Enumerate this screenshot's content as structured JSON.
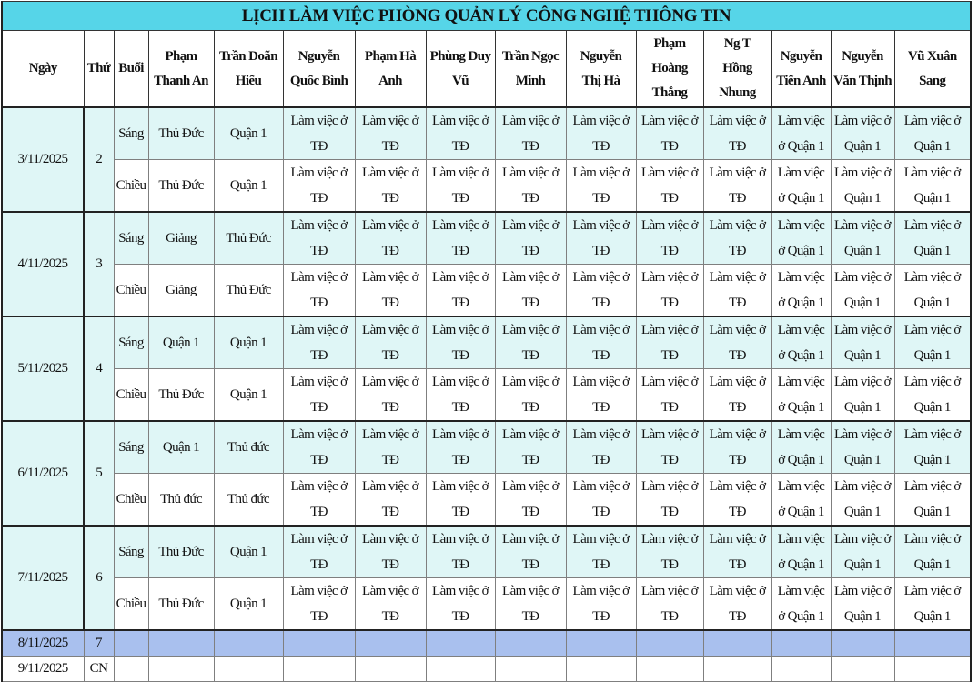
{
  "title": "LỊCH LÀM VIỆC PHÒNG QUẢN LÝ CÔNG NGHỆ THÔNG TIN",
  "headers": [
    "Ngày",
    "Thứ",
    "Buổi",
    "Phạm\nThanh An",
    "Trần Doãn\nHiếu",
    "Nguyễn\nQuốc Bình",
    "Phạm Hà\nAnh",
    "Phùng Duy\nVũ",
    "Trần Ngọc\nMinh",
    "Nguyễn\nThị Hà",
    "Phạm\nHoàng\nThắng",
    "Ng T\nHồng\nNhung",
    "Nguyễn\nTiến Anh",
    "Nguyễn\nVăn Thịnh",
    "Vũ Xuân\nSang"
  ],
  "days": [
    {
      "date": "3/11/2025",
      "dow": "2",
      "sessions": [
        {
          "session": "Sáng",
          "cells": [
            "Thủ Đức",
            "Quận 1",
            "Làm việc ở\nTĐ",
            "Làm việc ở\nTĐ",
            "Làm việc ở\nTĐ",
            "Làm việc ở\nTĐ",
            "Làm việc ở\nTĐ",
            "Làm việc ở\nTĐ",
            "Làm việc ở\nTĐ",
            "Làm việc\nở Quận 1",
            "Làm việc ở\nQuận 1",
            "Làm việc ở\nQuận 1"
          ]
        },
        {
          "session": "Chiều",
          "cells": [
            "Thủ Đức",
            "Quận 1",
            "Làm việc ở\nTĐ",
            "Làm việc ở\nTĐ",
            "Làm việc ở\nTĐ",
            "Làm việc ở\nTĐ",
            "Làm việc ở\nTĐ",
            "Làm việc ở\nTĐ",
            "Làm việc ở\nTĐ",
            "Làm việc\nở Quận 1",
            "Làm việc ở\nQuận 1",
            "Làm việc ở\nQuận 1"
          ]
        }
      ]
    },
    {
      "date": "4/11/2025",
      "dow": "3",
      "sessions": [
        {
          "session": "Sáng",
          "cells": [
            "Giảng",
            "Thủ Đức",
            "Làm việc ở\nTĐ",
            "Làm việc ở\nTĐ",
            "Làm việc ở\nTĐ",
            "Làm việc ở\nTĐ",
            "Làm việc ở\nTĐ",
            "Làm việc ở\nTĐ",
            "Làm việc ở\nTĐ",
            "Làm việc\nở Quận 1",
            "Làm việc ở\nQuận 1",
            "Làm việc ở\nQuận 1"
          ]
        },
        {
          "session": "Chiều",
          "cells": [
            "Giảng",
            "Thủ Đức",
            "Làm việc ở\nTĐ",
            "Làm việc ở\nTĐ",
            "Làm việc ở\nTĐ",
            "Làm việc ở\nTĐ",
            "Làm việc ở\nTĐ",
            "Làm việc ở\nTĐ",
            "Làm việc ở\nTĐ",
            "Làm việc\nở Quận 1",
            "Làm việc ở\nQuận 1",
            "Làm việc ở\nQuận 1"
          ]
        }
      ]
    },
    {
      "date": "5/11/2025",
      "dow": "4",
      "sessions": [
        {
          "session": "Sáng",
          "cells": [
            "Quận 1",
            "Quận 1",
            "Làm việc ở\nTĐ",
            "Làm việc ở\nTĐ",
            "Làm việc ở\nTĐ",
            "Làm việc ở\nTĐ",
            "Làm việc ở\nTĐ",
            "Làm việc ở\nTĐ",
            "Làm việc ở\nTĐ",
            "Làm việc\nở Quận 1",
            "Làm việc ở\nQuận 1",
            "Làm việc ở\nQuận 1"
          ]
        },
        {
          "session": "Chiều",
          "cells": [
            "Thủ Đức",
            "Quận 1",
            "Làm việc ở\nTĐ",
            "Làm việc ở\nTĐ",
            "Làm việc ở\nTĐ",
            "Làm việc ở\nTĐ",
            "Làm việc ở\nTĐ",
            "Làm việc ở\nTĐ",
            "Làm việc ở\nTĐ",
            "Làm việc\nở Quận 1",
            "Làm việc ở\nQuận 1",
            "Làm việc ở\nQuận 1"
          ]
        }
      ]
    },
    {
      "date": "6/11/2025",
      "dow": "5",
      "sessions": [
        {
          "session": "Sáng",
          "cells": [
            "Quận 1",
            "Thủ đức",
            "Làm việc ở\nTĐ",
            "Làm việc ở\nTĐ",
            "Làm việc ở\nTĐ",
            "Làm việc ở\nTĐ",
            "Làm việc ở\nTĐ",
            "Làm việc ở\nTĐ",
            "Làm việc ở\nTĐ",
            "Làm việc\nở Quận 1",
            "Làm việc ở\nQuận 1",
            "Làm việc ở\nQuận 1"
          ]
        },
        {
          "session": "Chiều",
          "cells": [
            "Thủ đức",
            "Thủ đức",
            "Làm việc ở\nTĐ",
            "Làm việc ở\nTĐ",
            "Làm việc ở\nTĐ",
            "Làm việc ở\nTĐ",
            "Làm việc ở\nTĐ",
            "Làm việc ở\nTĐ",
            "Làm việc ở\nTĐ",
            "Làm việc\nở Quận 1",
            "Làm việc ở\nQuận 1",
            "Làm việc ở\nQuận 1"
          ]
        }
      ]
    },
    {
      "date": "7/11/2025",
      "dow": "6",
      "sessions": [
        {
          "session": "Sáng",
          "cells": [
            "Thủ Đức",
            "Quận 1",
            "Làm việc ở\nTĐ",
            "Làm việc ở\nTĐ",
            "Làm việc ở\nTĐ",
            "Làm việc ở\nTĐ",
            "Làm việc ở\nTĐ",
            "Làm việc ở\nTĐ",
            "Làm việc ở\nTĐ",
            "Làm việc\nở Quận 1",
            "Làm việc ở\nQuận 1",
            "Làm việc ở\nQuận 1"
          ]
        },
        {
          "session": "Chiều",
          "cells": [
            "Thủ Đức",
            "Quận 1",
            "Làm việc ở\nTĐ",
            "Làm việc ở\nTĐ",
            "Làm việc ở\nTĐ",
            "Làm việc ở\nTĐ",
            "Làm việc ở\nTĐ",
            "Làm việc ở\nTĐ",
            "Làm việc ở\nTĐ",
            "Làm việc\nở Quận 1",
            "Làm việc ở\nQuận 1",
            "Làm việc ở\nQuận 1"
          ]
        }
      ]
    }
  ],
  "weekend": [
    {
      "date": "8/11/2025",
      "dow": "7",
      "row_color": "#a9c0ee"
    },
    {
      "date": "9/11/2025",
      "dow": "CN",
      "row_color": "#ffffff"
    }
  ],
  "colors": {
    "title_bg": "#56d5e8",
    "morning_bg": "#dff6f6",
    "saturday_bg": "#a9c0ee"
  }
}
